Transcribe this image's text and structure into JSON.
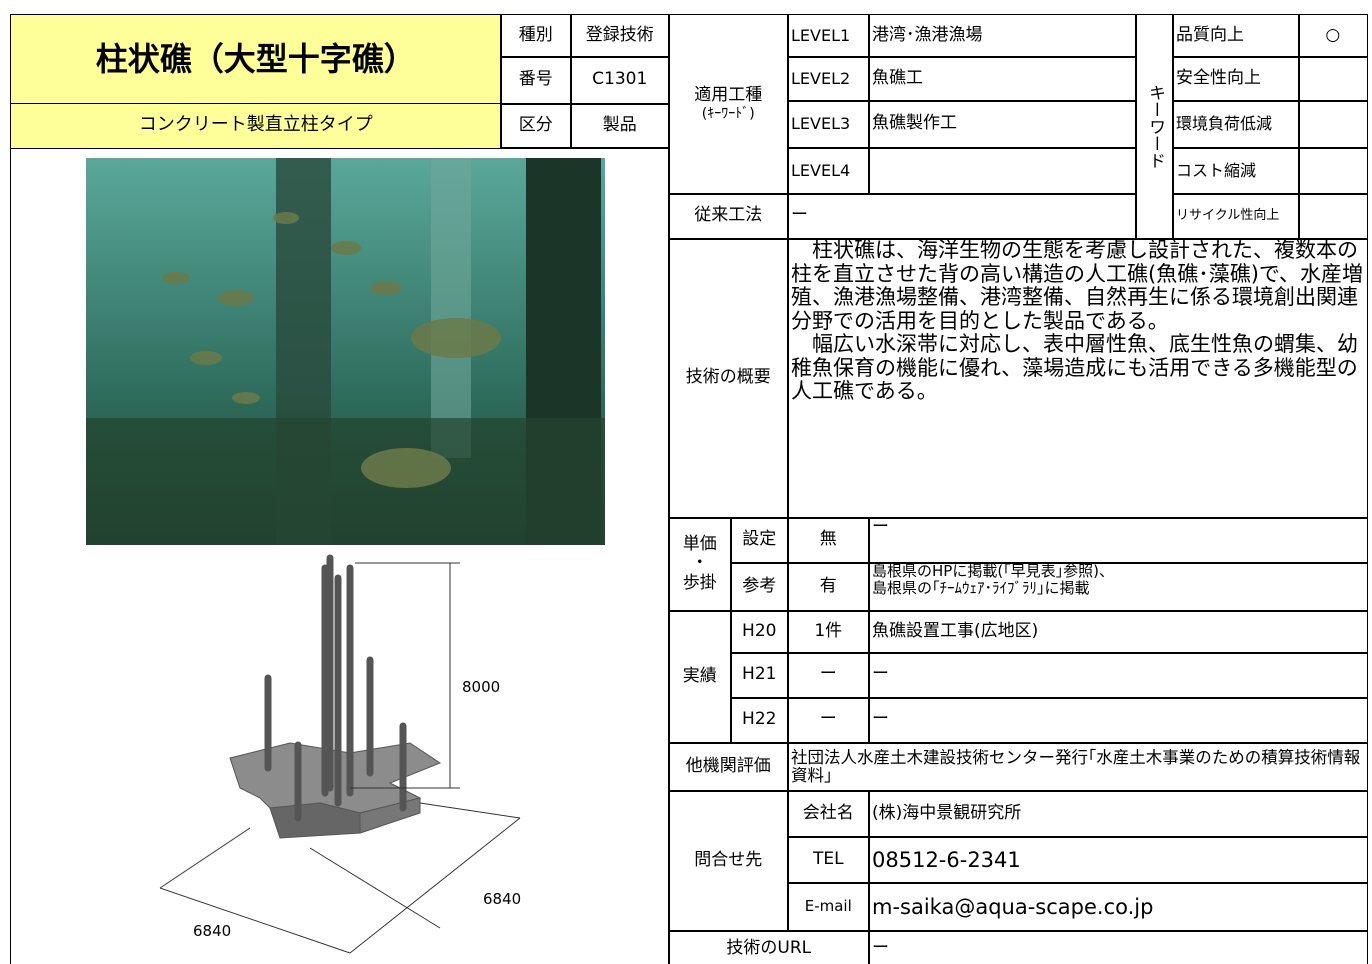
{
  "header": {
    "title": "柱状礁（大型十字礁）",
    "subtitle": "コンクリート製直立柱タイプ",
    "fields": [
      {
        "label": "種別",
        "value": "登録技術"
      },
      {
        "label": "番号",
        "value": "C1301"
      },
      {
        "label": "区分",
        "value": "製品"
      }
    ]
  },
  "application": {
    "label": "適用工種",
    "sublabel": "(ｷｰﾜｰﾄﾞ)",
    "levels": [
      {
        "label": "LEVEL1",
        "value": "港湾･漁港漁場"
      },
      {
        "label": "LEVEL2",
        "value": "魚礁工"
      },
      {
        "label": "LEVEL3",
        "value": "魚礁製作工"
      },
      {
        "label": "LEVEL4"
      }
    ]
  },
  "keyword": {
    "label": "キーワード",
    "items": [
      {
        "label": "品質向上",
        "mark": "○"
      },
      {
        "label": "安全性向上"
      },
      {
        "label": "環境負荷低減"
      },
      {
        "label": "コスト縮減"
      },
      {
        "label": "リサイクル性向上"
      }
    ]
  },
  "conventional": {
    "label": "従来工法",
    "value": "ー"
  },
  "overview": {
    "label": "技術の概要",
    "paragraphs": [
      "　柱状礁は、海洋生物の生態を考慮し設計された、複数本の柱を直立させた背の高い構造の人工礁(魚礁･藻礁)で、水産増殖、漁港漁場整備、港湾整備、自然再生に係る環境創出関連分野での活用を目的とした製品である。",
      "　幅広い水深帯に対応し、表中層性魚、底生性魚の蝟集、幼稚魚保育の機能に優れ、藻場造成にも活用できる多機能型の人工礁である。"
    ]
  },
  "price": {
    "label": [
      "単価",
      "・",
      "歩掛"
    ],
    "rows": [
      {
        "label": "設定",
        "flag": "無",
        "note": [
          "ー"
        ]
      },
      {
        "label": "参考",
        "flag": "有",
        "note": [
          "島根県のHPに掲載(｢早見表｣参照)、",
          "島根県の｢ﾁｰﾑｳｪｱ･ﾗｲﾌﾞﾗﾘ｣に掲載"
        ]
      }
    ]
  },
  "record": {
    "label": "実績",
    "rows": [
      {
        "year": "H20",
        "count": "1件",
        "project": "魚礁設置工事(広地区)"
      },
      {
        "year": "H21",
        "count": "ー",
        "project": "ー"
      },
      {
        "year": "H22",
        "count": "ー",
        "project": "ー"
      }
    ]
  },
  "evaluation": {
    "label": "他機関評価",
    "value": "社団法人水産土木建設技術センター発行｢水産土木事業のための積算技術情報資料｣"
  },
  "contact": {
    "label": "問合せ先",
    "rows": [
      {
        "label": "会社名",
        "value": "(株)海中景観研究所"
      },
      {
        "label": "TEL",
        "value": "08512-6-2341"
      },
      {
        "label": "E-mail",
        "value": "m-saika@aqua-scape.co.jp"
      }
    ]
  },
  "url": {
    "label": "技術のURL",
    "value": "ー"
  },
  "figure": {
    "height": "8000",
    "width_a": "6840",
    "width_b": "6840"
  }
}
